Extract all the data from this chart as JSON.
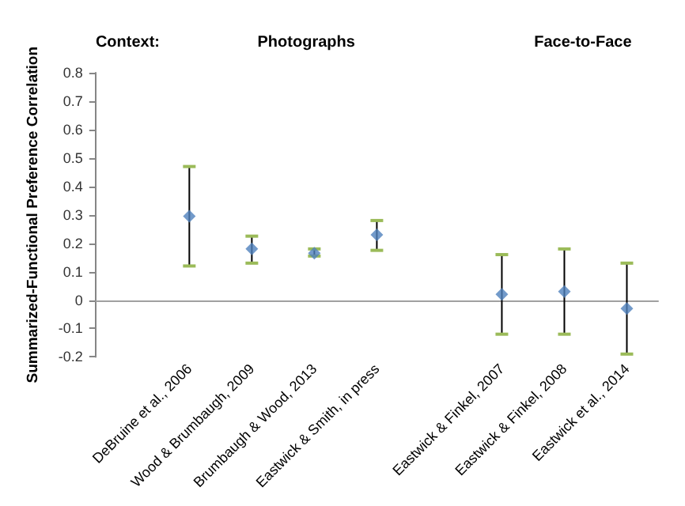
{
  "chart_data": {
    "type": "scatter",
    "ylabel": "Summarized-Functional Preference Correlation",
    "annotations": [
      "Context:",
      "Photographs",
      "Face-to-Face"
    ],
    "categories": [
      null,
      "DeBruine et al., 2006",
      "Wood & Brumbaugh, 2009",
      "Brumbaugh & Wood, 2013",
      "Eastwick & Smith, in press",
      null,
      "Eastwick & Finkel, 2007",
      "Eastwick & Finkel, 2008",
      "Eastwick et al., 2014"
    ],
    "series": [
      {
        "color": "#4f81bd",
        "values": [
          null,
          0.295,
          0.18,
          0.165,
          0.23,
          null,
          0.02,
          0.03,
          -0.03
        ],
        "errors": [
          null,
          [
            0.12,
            0.47
          ],
          [
            0.13,
            0.225
          ],
          [
            0.155,
            0.18
          ],
          [
            0.175,
            0.28
          ],
          null,
          [
            -0.12,
            0.16
          ],
          [
            -0.12,
            0.18
          ],
          [
            -0.19,
            0.13
          ]
        ]
      }
    ],
    "ylim": [
      -0.2,
      0.8
    ],
    "yticks": [
      -0.2,
      -0.1,
      0,
      0.1,
      0.2,
      0.3,
      0.4,
      0.5,
      0.6,
      0.7,
      0.8
    ],
    "marker": "diamond"
  }
}
